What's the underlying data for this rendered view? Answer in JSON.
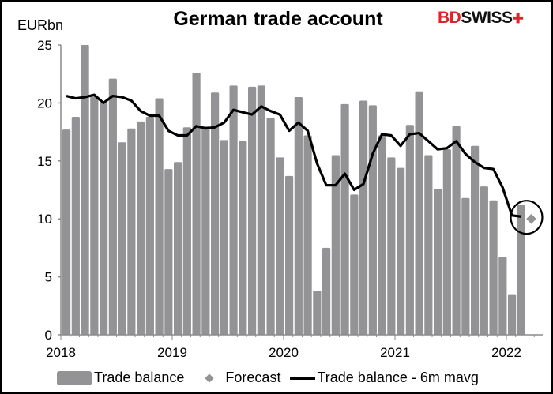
{
  "chart_data": {
    "type": "bar",
    "title": "German trade account",
    "ylabel": "EURbn",
    "xlabel": "",
    "ylim": [
      0,
      25
    ],
    "yticks": [
      "0",
      "5",
      "10",
      "15",
      "20",
      "25"
    ],
    "xticks": [
      "2018",
      "2019",
      "2020",
      "2021",
      "2022"
    ],
    "grid": false,
    "legend_placement": "bottom",
    "x_start": "2018-01",
    "x_end": "2022-02",
    "categories_note_frequency": "monthly",
    "series": [
      {
        "name": "Trade balance",
        "kind": "bar",
        "color": "#939396",
        "values": [
          17.7,
          18.8,
          25.0,
          20.6,
          20.0,
          22.1,
          16.6,
          17.8,
          18.4,
          18.8,
          20.4,
          14.3,
          14.9,
          17.9,
          22.6,
          18.0,
          20.9,
          16.8,
          21.5,
          16.7,
          21.4,
          21.5,
          18.7,
          15.3,
          13.7,
          20.5,
          17.2,
          3.8,
          7.5,
          15.5,
          19.9,
          12.1,
          20.2,
          19.8,
          17.2,
          15.3,
          14.4,
          18.1,
          21.0,
          15.5,
          12.6,
          16.0,
          18.0,
          11.8,
          16.3,
          12.8,
          11.6,
          6.7,
          3.5,
          11.2
        ]
      },
      {
        "name": "Forecast",
        "kind": "scatter",
        "marker": "diamond",
        "color": "#939396",
        "x": "2022-03",
        "values": [
          10.0
        ]
      },
      {
        "name": "Trade balance - 6m mavg",
        "kind": "line",
        "color": "#000000",
        "values": [
          20.6,
          20.4,
          20.5,
          20.7,
          20.0,
          20.6,
          20.5,
          20.2,
          19.3,
          18.9,
          18.9,
          17.6,
          17.2,
          17.2,
          18.0,
          17.8,
          17.9,
          18.3,
          19.4,
          19.2,
          19.0,
          19.7,
          19.3,
          19.0,
          17.6,
          18.3,
          17.6,
          14.8,
          12.9,
          12.9,
          13.9,
          12.5,
          13.0,
          15.6,
          17.3,
          17.2,
          16.3,
          17.3,
          17.4,
          16.7,
          16.0,
          16.1,
          16.7,
          15.6,
          14.9,
          14.4,
          14.3,
          12.7,
          10.3,
          10.2
        ]
      }
    ],
    "annotation": "circle around the latest value and forecast"
  },
  "logo": {
    "part1": "BD",
    "part2": "SWISS",
    "mark": "✚"
  },
  "legend": [
    "Trade balance",
    "Forecast",
    "Trade balance - 6m mavg"
  ]
}
